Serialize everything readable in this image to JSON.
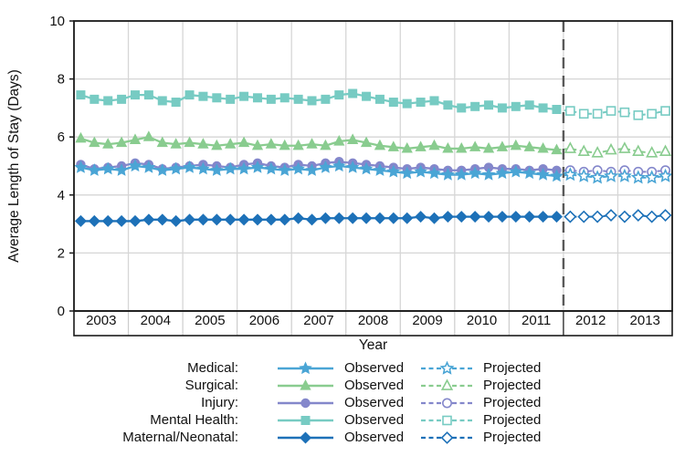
{
  "chart_data": {
    "type": "line",
    "title": "",
    "xlabel": "Year",
    "ylabel": "Average Length of Stay (Days)",
    "ylim": [
      0,
      10
    ],
    "y_ticks": [
      0,
      2,
      4,
      6,
      8,
      10
    ],
    "x_domain": [
      2003,
      2014
    ],
    "year_labels": [
      "2003",
      "2004",
      "2005",
      "2006",
      "2007",
      "2008",
      "2009",
      "2010",
      "2011",
      "2012",
      "2013"
    ],
    "points_per_year": 4,
    "observed_start_year": 2003,
    "projected_start_year": 2012,
    "divider_x": 2012,
    "grid": true,
    "legend_position": "bottom",
    "legend_observed_label": "Observed",
    "legend_projected_label": "Projected",
    "colors": {
      "grid": "#d6d6d6",
      "band_separator": "#cccccc",
      "frame": "#1a1a1a",
      "divider": "#595959"
    },
    "series": [
      {
        "name": "Medical",
        "legend_label": "Medical:",
        "marker": "star",
        "color": "#4AA5D5",
        "observed": [
          4.95,
          4.85,
          4.9,
          4.85,
          5.0,
          4.95,
          4.85,
          4.9,
          4.95,
          4.9,
          4.85,
          4.9,
          4.9,
          4.95,
          4.9,
          4.85,
          4.9,
          4.85,
          4.95,
          5.0,
          4.95,
          4.9,
          4.85,
          4.8,
          4.75,
          4.8,
          4.75,
          4.7,
          4.7,
          4.75,
          4.7,
          4.75,
          4.8,
          4.75,
          4.7,
          4.65
        ],
        "projected": [
          4.7,
          4.65,
          4.6,
          4.65,
          4.65,
          4.6,
          4.6,
          4.65
        ]
      },
      {
        "name": "Surgical",
        "legend_label": "Surgical:",
        "marker": "triangle",
        "color": "#89CC8F",
        "observed": [
          5.95,
          5.8,
          5.75,
          5.8,
          5.9,
          6.0,
          5.8,
          5.75,
          5.8,
          5.75,
          5.7,
          5.75,
          5.8,
          5.7,
          5.75,
          5.7,
          5.7,
          5.75,
          5.7,
          5.85,
          5.9,
          5.8,
          5.7,
          5.65,
          5.6,
          5.65,
          5.7,
          5.6,
          5.6,
          5.65,
          5.6,
          5.65,
          5.7,
          5.65,
          5.6,
          5.55
        ],
        "projected": [
          5.6,
          5.5,
          5.45,
          5.55,
          5.6,
          5.5,
          5.45,
          5.5
        ]
      },
      {
        "name": "Injury",
        "legend_label": "Injury:",
        "marker": "circle",
        "color": "#8487CB",
        "observed": [
          5.05,
          4.9,
          4.95,
          5.0,
          5.1,
          5.05,
          4.9,
          4.95,
          5.0,
          5.05,
          5.0,
          4.95,
          5.05,
          5.1,
          5.0,
          4.95,
          5.05,
          5.0,
          5.1,
          5.15,
          5.1,
          5.05,
          5.0,
          4.95,
          4.9,
          4.95,
          4.9,
          4.85,
          4.85,
          4.9,
          4.95,
          4.9,
          4.9,
          4.85,
          4.9,
          4.85
        ],
        "projected": [
          4.85,
          4.8,
          4.85,
          4.8,
          4.85,
          4.8,
          4.8,
          4.85
        ]
      },
      {
        "name": "Mental Health",
        "legend_label": "Mental Health:",
        "marker": "square",
        "color": "#77CBC3",
        "observed": [
          7.45,
          7.3,
          7.25,
          7.3,
          7.45,
          7.45,
          7.25,
          7.2,
          7.45,
          7.4,
          7.35,
          7.3,
          7.4,
          7.35,
          7.3,
          7.35,
          7.3,
          7.25,
          7.3,
          7.45,
          7.5,
          7.4,
          7.3,
          7.2,
          7.15,
          7.2,
          7.25,
          7.1,
          7.0,
          7.05,
          7.1,
          7.0,
          7.05,
          7.1,
          7.0,
          6.95
        ],
        "projected": [
          6.9,
          6.8,
          6.8,
          6.9,
          6.85,
          6.75,
          6.8,
          6.9
        ]
      },
      {
        "name": "Maternal/Neonatal",
        "legend_label": "Maternal/Neonatal:",
        "marker": "diamond",
        "color": "#1D71B8",
        "observed": [
          3.1,
          3.1,
          3.1,
          3.1,
          3.1,
          3.15,
          3.15,
          3.1,
          3.15,
          3.15,
          3.15,
          3.15,
          3.15,
          3.15,
          3.15,
          3.15,
          3.2,
          3.15,
          3.2,
          3.2,
          3.2,
          3.2,
          3.2,
          3.2,
          3.2,
          3.25,
          3.2,
          3.25,
          3.25,
          3.25,
          3.25,
          3.25,
          3.25,
          3.25,
          3.25,
          3.25
        ],
        "projected": [
          3.25,
          3.25,
          3.25,
          3.3,
          3.25,
          3.3,
          3.25,
          3.3
        ]
      }
    ],
    "draw_order": [
      3,
      1,
      2,
      0,
      4
    ]
  }
}
